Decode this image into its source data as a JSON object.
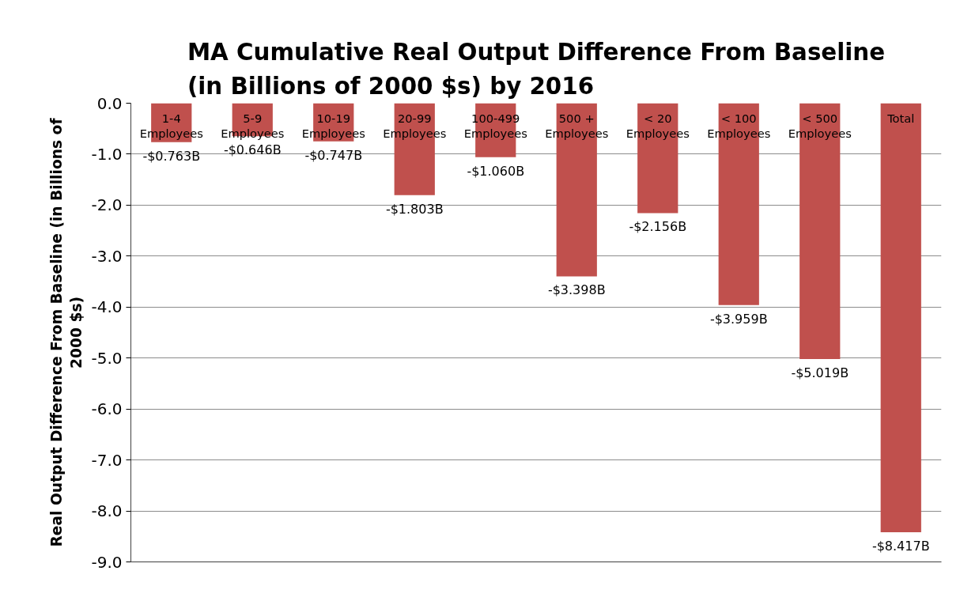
{
  "chart_data": {
    "type": "bar",
    "title": "MA Cumulative Real Output Difference From Baseline (in Billions of 2000 $s) by 2016",
    "ylabel": "Real Output Difference From Baseline (in Billions of 2000 $s)",
    "categories": [
      "1-4 Employees",
      "5-9 Employees",
      "10-19 Employees",
      "20-99 Employees",
      "100-499 Employees",
      "500 + Employees",
      "< 20 Employees",
      "< 100 Employees",
      "< 500 Employees",
      "Total"
    ],
    "values": [
      -0.763,
      -0.646,
      -0.747,
      -1.803,
      -1.06,
      -3.398,
      -2.156,
      -3.959,
      -5.019,
      -8.417
    ],
    "value_labels": [
      "-$0.763B",
      "-$0.646B",
      "-$0.747B",
      "-$1.803B",
      "-$1.060B",
      "-$3.398B",
      "-$2.156B",
      "-$3.959B",
      "-$5.019B",
      "-$8.417B"
    ],
    "color": "#c0504d",
    "ylim": [
      -9,
      0
    ],
    "yticks": [
      {
        "value": 0,
        "label": "0.0"
      },
      {
        "value": -1,
        "label": "-1.0"
      },
      {
        "value": -2,
        "label": "-2.0"
      },
      {
        "value": -3,
        "label": "-3.0"
      },
      {
        "value": -4,
        "label": "-4.0"
      },
      {
        "value": -5,
        "label": "-5.0"
      },
      {
        "value": -6,
        "label": "-6.0"
      },
      {
        "value": -7,
        "label": "-7.0"
      },
      {
        "value": -8,
        "label": "-8.0"
      },
      {
        "value": -9,
        "label": "-9.0"
      }
    ],
    "grid": "y"
  }
}
